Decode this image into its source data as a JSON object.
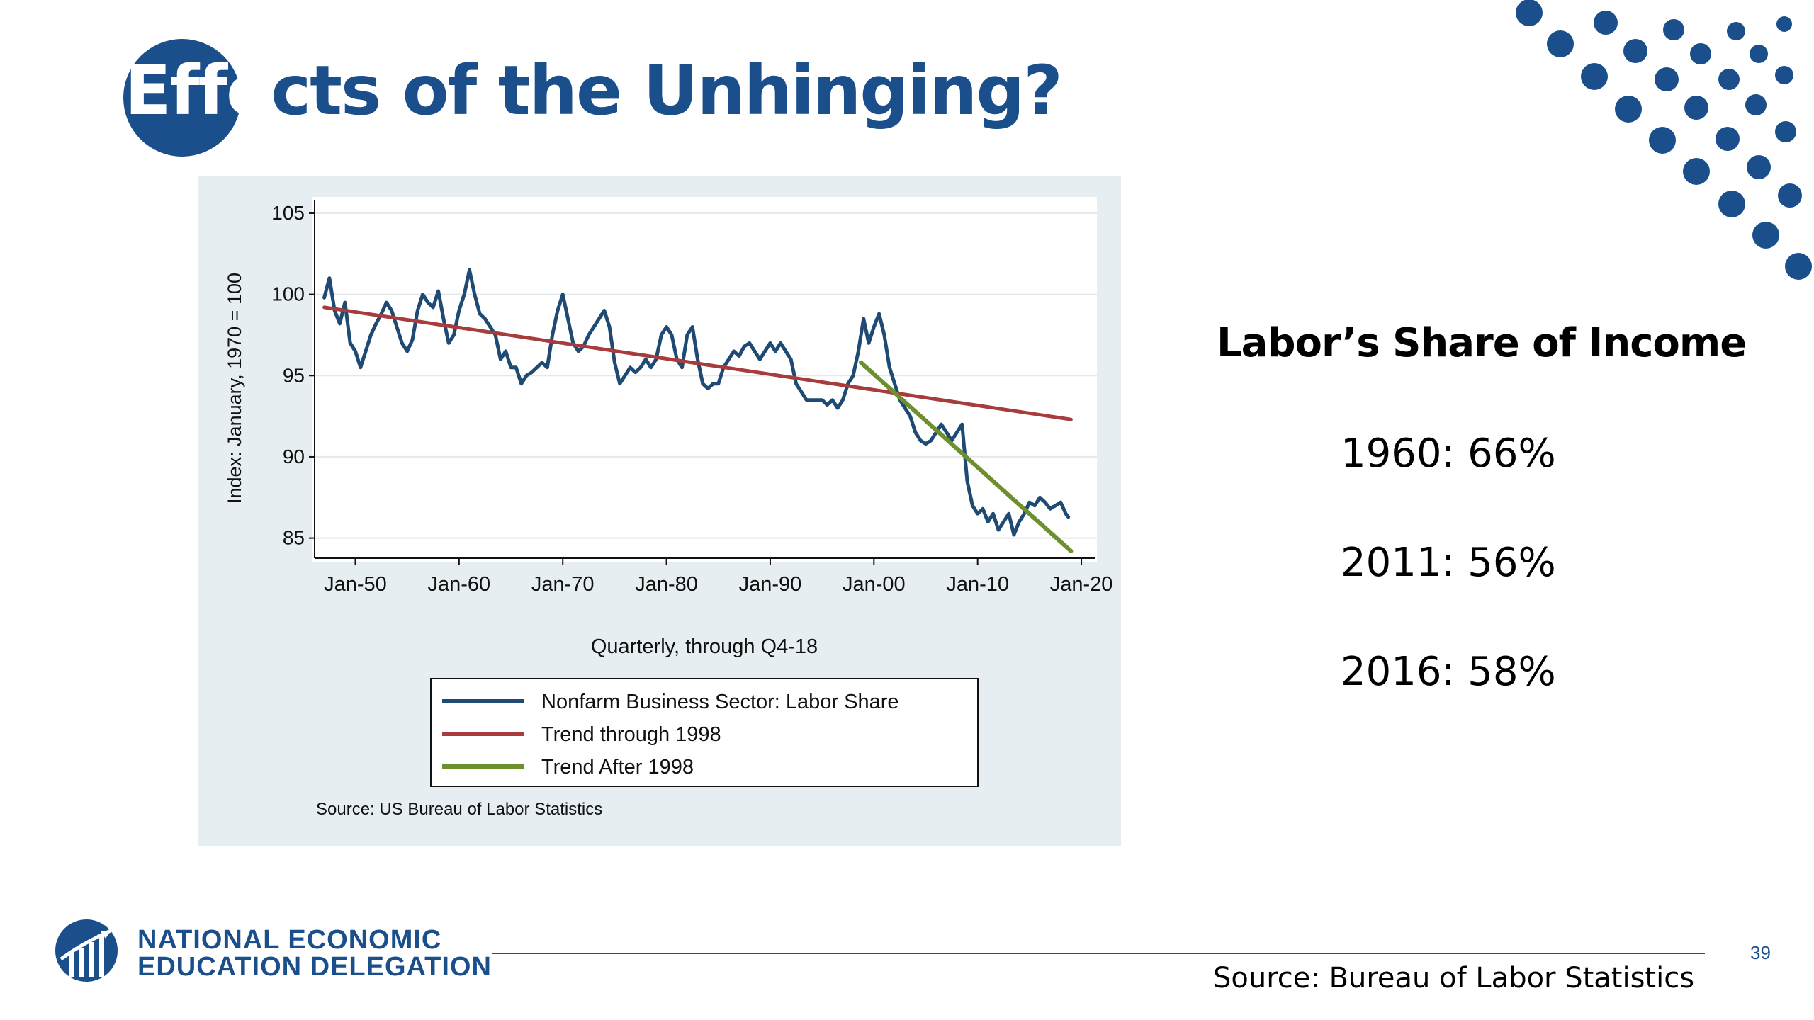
{
  "slide": {
    "title_highlight": "Effe",
    "title_rest": "cts of the Unhinging?",
    "page_number": "39",
    "footer_source": "Source: Bureau of Labor Statistics"
  },
  "stats": {
    "heading": "Labor’s Share of Income",
    "items": [
      {
        "text": "1960:  66%"
      },
      {
        "text": "2011:  56%"
      },
      {
        "text": "2016:  58%"
      }
    ]
  },
  "logo": {
    "line1": "NATIONAL ECONOMIC",
    "line2": "EDUCATION DELEGATION"
  },
  "colors": {
    "brand_blue": "#1b4f8c",
    "panel_bg": "#e6eef2",
    "series_labor_share": "#1f4a73",
    "series_trend_1998": "#a83c3c",
    "series_trend_after": "#6e8f2e"
  },
  "chart_data": {
    "type": "line",
    "xlabel": "Quarterly, through Q4-18",
    "ylabel": "Index: January, 1970 = 100",
    "source_note": "Source: US Bureau of Labor Statistics",
    "xlim": [
      1945.8,
      2021.5
    ],
    "ylim": [
      83.5,
      106
    ],
    "x_ticks": [
      {
        "label": "Jan-50",
        "value": 1950
      },
      {
        "label": "Jan-60",
        "value": 1960
      },
      {
        "label": "Jan-70",
        "value": 1970
      },
      {
        "label": "Jan-80",
        "value": 1980
      },
      {
        "label": "Jan-90",
        "value": 1990
      },
      {
        "label": "Jan-00",
        "value": 2000
      },
      {
        "label": "Jan-10",
        "value": 2010
      },
      {
        "label": "Jan-20",
        "value": 2020
      }
    ],
    "y_ticks": [
      85,
      90,
      95,
      100,
      105
    ],
    "grid": "horizontal",
    "legend_position": "bottom",
    "series": [
      {
        "name": "Nonfarm Business Sector: Labor Share",
        "color": "#1f4a73",
        "points": [
          [
            1947.0,
            99.8
          ],
          [
            1947.5,
            101.0
          ],
          [
            1948.0,
            99.0
          ],
          [
            1948.5,
            98.2
          ],
          [
            1949.0,
            99.5
          ],
          [
            1949.5,
            97.0
          ],
          [
            1950.0,
            96.5
          ],
          [
            1950.5,
            95.5
          ],
          [
            1951.0,
            96.5
          ],
          [
            1951.5,
            97.5
          ],
          [
            1952.0,
            98.2
          ],
          [
            1952.5,
            98.8
          ],
          [
            1953.0,
            99.5
          ],
          [
            1953.5,
            99.0
          ],
          [
            1954.0,
            98.0
          ],
          [
            1954.5,
            97.0
          ],
          [
            1955.0,
            96.5
          ],
          [
            1955.5,
            97.2
          ],
          [
            1956.0,
            99.0
          ],
          [
            1956.5,
            100.0
          ],
          [
            1957.0,
            99.5
          ],
          [
            1957.5,
            99.2
          ],
          [
            1958.0,
            100.2
          ],
          [
            1958.5,
            98.5
          ],
          [
            1959.0,
            97.0
          ],
          [
            1959.5,
            97.5
          ],
          [
            1960.0,
            99.0
          ],
          [
            1960.5,
            100.0
          ],
          [
            1961.0,
            101.5
          ],
          [
            1961.5,
            100.0
          ],
          [
            1962.0,
            98.8
          ],
          [
            1962.5,
            98.5
          ],
          [
            1963.0,
            98.0
          ],
          [
            1963.5,
            97.5
          ],
          [
            1964.0,
            96.0
          ],
          [
            1964.5,
            96.5
          ],
          [
            1965.0,
            95.5
          ],
          [
            1965.5,
            95.5
          ],
          [
            1966.0,
            94.5
          ],
          [
            1966.5,
            95.0
          ],
          [
            1967.0,
            95.2
          ],
          [
            1967.5,
            95.5
          ],
          [
            1968.0,
            95.8
          ],
          [
            1968.5,
            95.5
          ],
          [
            1969.0,
            97.5
          ],
          [
            1969.5,
            99.0
          ],
          [
            1970.0,
            100.0
          ],
          [
            1970.5,
            98.5
          ],
          [
            1971.0,
            97.0
          ],
          [
            1971.5,
            96.5
          ],
          [
            1972.0,
            96.8
          ],
          [
            1972.5,
            97.5
          ],
          [
            1973.0,
            98.0
          ],
          [
            1973.5,
            98.5
          ],
          [
            1974.0,
            99.0
          ],
          [
            1974.5,
            98.0
          ],
          [
            1975.0,
            95.8
          ],
          [
            1975.5,
            94.5
          ],
          [
            1976.0,
            95.0
          ],
          [
            1976.5,
            95.5
          ],
          [
            1977.0,
            95.2
          ],
          [
            1977.5,
            95.5
          ],
          [
            1978.0,
            96.0
          ],
          [
            1978.5,
            95.5
          ],
          [
            1979.0,
            96.0
          ],
          [
            1979.5,
            97.5
          ],
          [
            1980.0,
            98.0
          ],
          [
            1980.5,
            97.5
          ],
          [
            1981.0,
            96.0
          ],
          [
            1981.5,
            95.5
          ],
          [
            1982.0,
            97.5
          ],
          [
            1982.5,
            98.0
          ],
          [
            1983.0,
            96.0
          ],
          [
            1983.5,
            94.5
          ],
          [
            1984.0,
            94.2
          ],
          [
            1984.5,
            94.5
          ],
          [
            1985.0,
            94.5
          ],
          [
            1985.5,
            95.5
          ],
          [
            1986.0,
            96.0
          ],
          [
            1986.5,
            96.5
          ],
          [
            1987.0,
            96.2
          ],
          [
            1987.5,
            96.8
          ],
          [
            1988.0,
            97.0
          ],
          [
            1988.5,
            96.5
          ],
          [
            1989.0,
            96.0
          ],
          [
            1989.5,
            96.5
          ],
          [
            1990.0,
            97.0
          ],
          [
            1990.5,
            96.5
          ],
          [
            1991.0,
            97.0
          ],
          [
            1991.5,
            96.5
          ],
          [
            1992.0,
            96.0
          ],
          [
            1992.5,
            94.5
          ],
          [
            1993.0,
            94.0
          ],
          [
            1993.5,
            93.5
          ],
          [
            1994.0,
            93.5
          ],
          [
            1995.0,
            93.5
          ],
          [
            1995.5,
            93.2
          ],
          [
            1996.0,
            93.5
          ],
          [
            1996.5,
            93.0
          ],
          [
            1997.0,
            93.5
          ],
          [
            1997.5,
            94.5
          ],
          [
            1998.0,
            95.0
          ],
          [
            1998.5,
            96.5
          ],
          [
            1999.0,
            98.5
          ],
          [
            1999.5,
            97.0
          ],
          [
            2000.0,
            98.0
          ],
          [
            2000.5,
            98.8
          ],
          [
            2001.0,
            97.5
          ],
          [
            2001.5,
            95.5
          ],
          [
            2002.0,
            94.5
          ],
          [
            2002.5,
            93.5
          ],
          [
            2003.0,
            93.0
          ],
          [
            2003.5,
            92.5
          ],
          [
            2004.0,
            91.5
          ],
          [
            2004.5,
            91.0
          ],
          [
            2005.0,
            90.8
          ],
          [
            2005.5,
            91.0
          ],
          [
            2006.0,
            91.5
          ],
          [
            2006.5,
            92.0
          ],
          [
            2007.0,
            91.5
          ],
          [
            2007.5,
            91.0
          ],
          [
            2008.0,
            91.5
          ],
          [
            2008.5,
            92.0
          ],
          [
            2009.0,
            88.5
          ],
          [
            2009.5,
            87.0
          ],
          [
            2010.0,
            86.5
          ],
          [
            2010.5,
            86.8
          ],
          [
            2011.0,
            86.0
          ],
          [
            2011.5,
            86.5
          ],
          [
            2012.0,
            85.5
          ],
          [
            2012.5,
            86.0
          ],
          [
            2013.0,
            86.5
          ],
          [
            2013.5,
            85.2
          ],
          [
            2014.0,
            86.0
          ],
          [
            2014.5,
            86.5
          ],
          [
            2015.0,
            87.2
          ],
          [
            2015.5,
            87.0
          ],
          [
            2016.0,
            87.5
          ],
          [
            2016.5,
            87.2
          ],
          [
            2017.0,
            86.8
          ],
          [
            2017.5,
            87.0
          ],
          [
            2018.0,
            87.2
          ],
          [
            2018.5,
            86.5
          ],
          [
            2018.75,
            86.3
          ]
        ]
      },
      {
        "name": "Trend through 1998",
        "color": "#a83c3c",
        "points": [
          [
            1947.0,
            99.2
          ],
          [
            2019.0,
            92.3
          ]
        ]
      },
      {
        "name": "Trend After 1998",
        "color": "#6e8f2e",
        "points": [
          [
            1998.75,
            95.8
          ],
          [
            2019.0,
            84.2
          ]
        ]
      }
    ]
  }
}
